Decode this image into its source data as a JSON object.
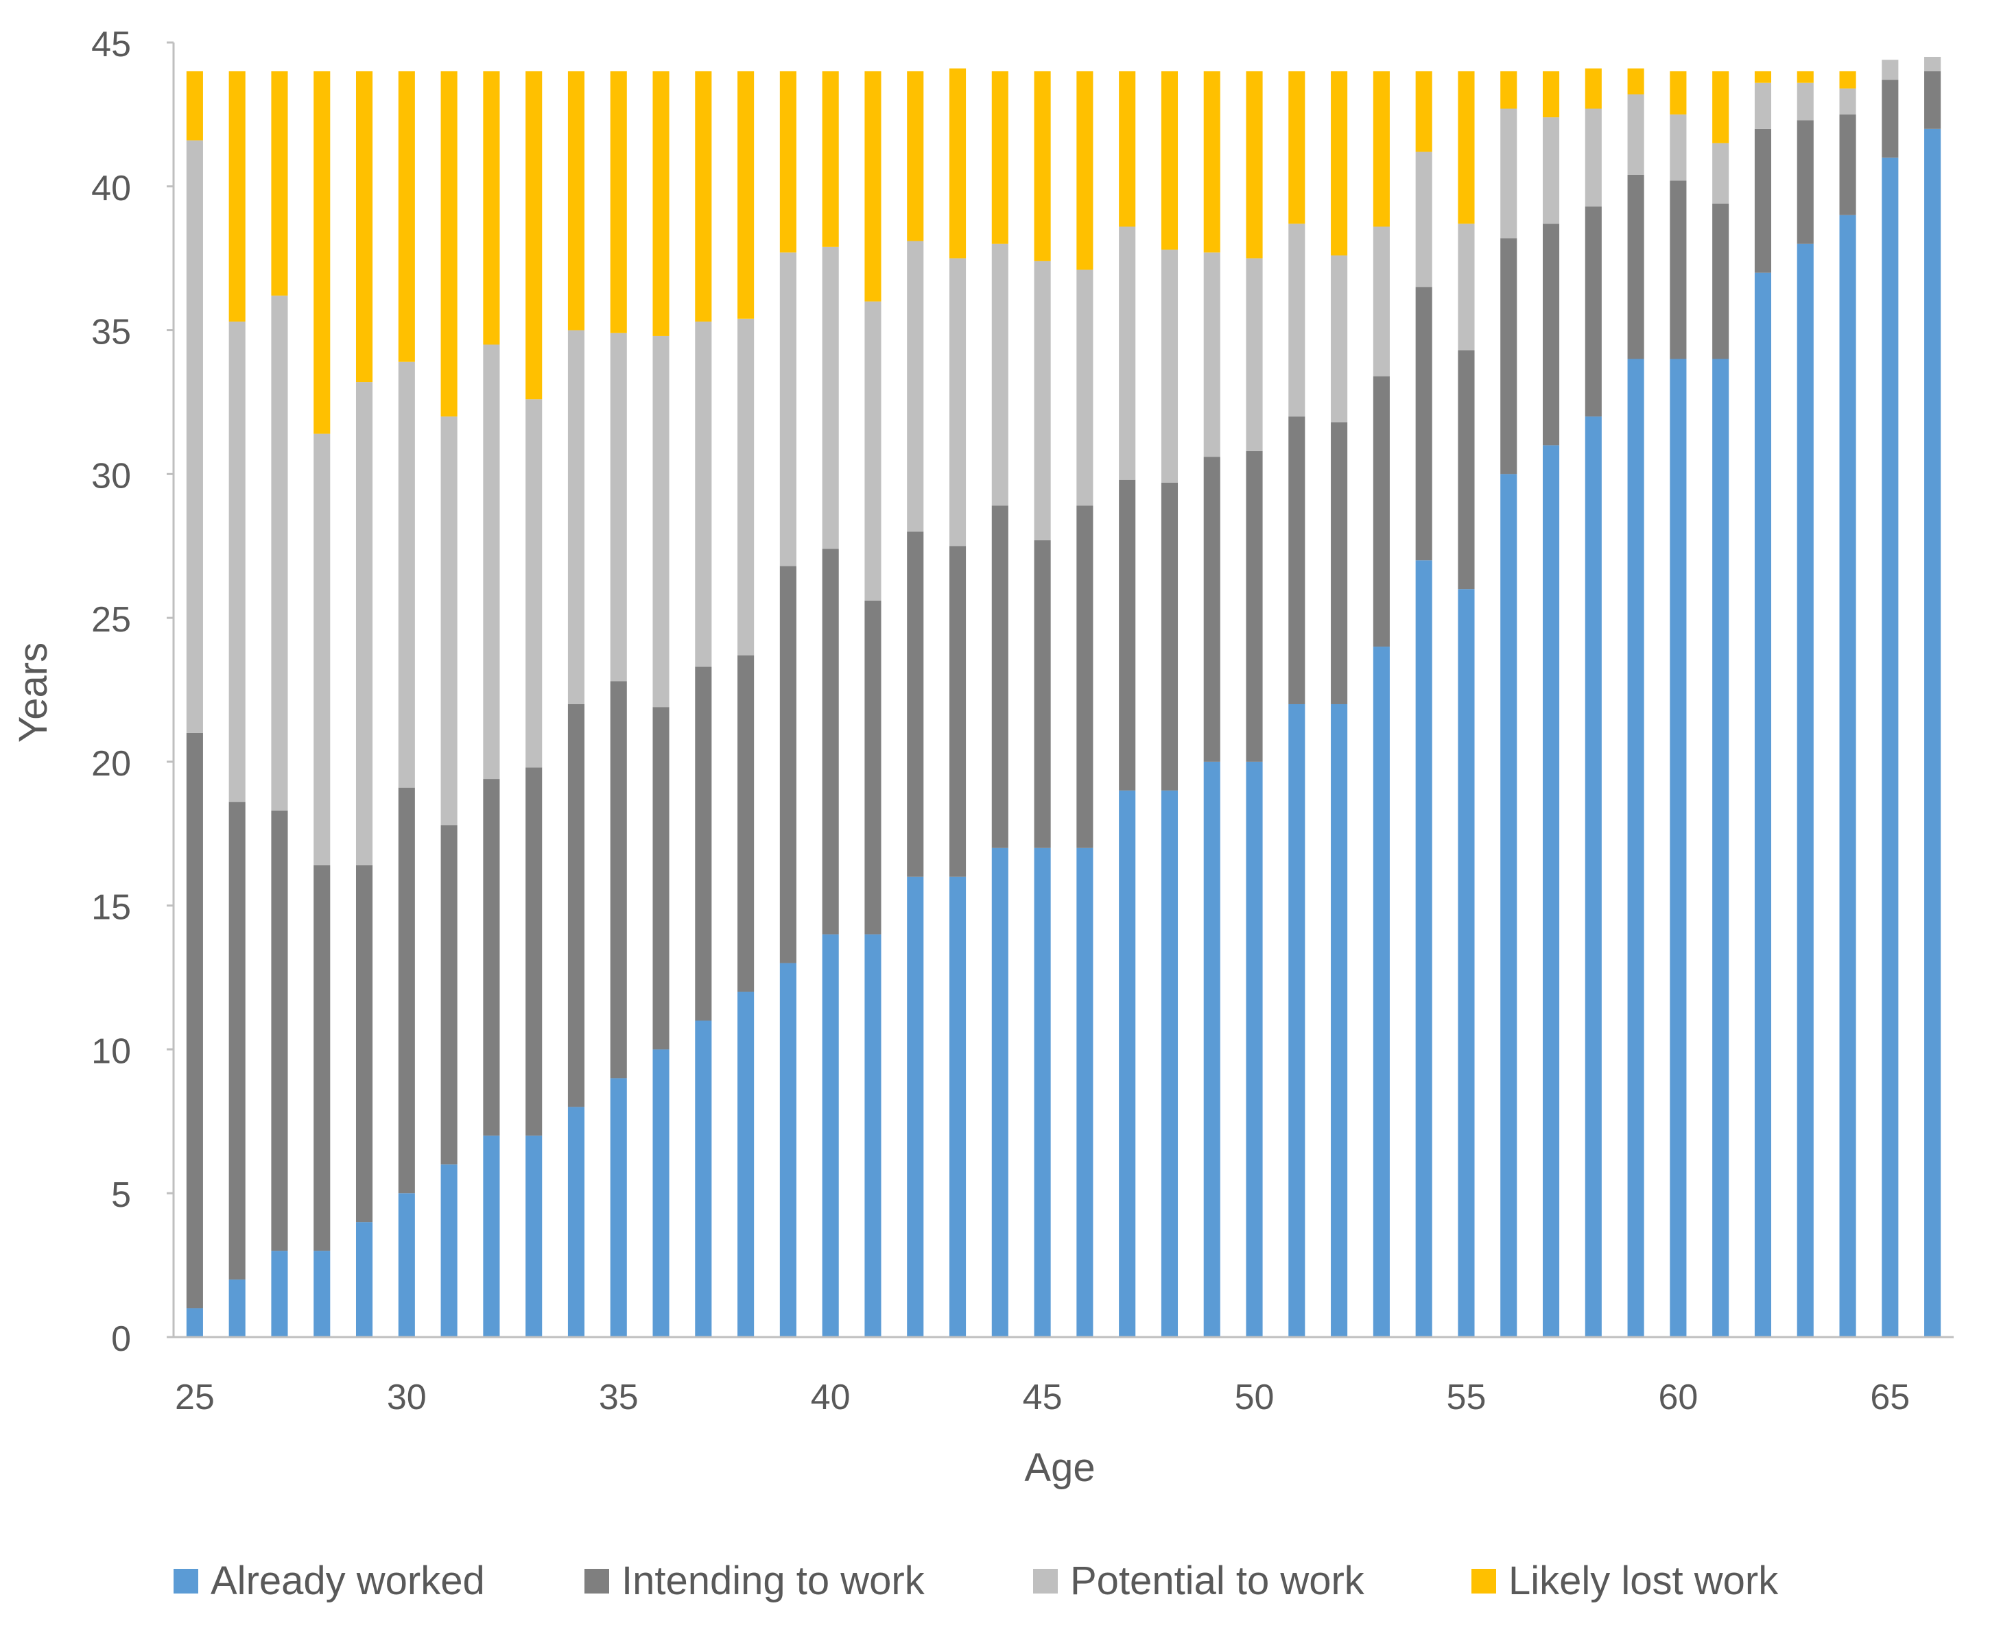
{
  "chart_data": {
    "type": "bar",
    "stacked": true,
    "title": "",
    "xlabel": "Age",
    "ylabel": "Years",
    "ylim": [
      0,
      45
    ],
    "yticks": [
      "0",
      "5",
      "10",
      "15",
      "20",
      "25",
      "30",
      "35",
      "40",
      "45"
    ],
    "xticks": [
      "25",
      "30",
      "35",
      "40",
      "45",
      "50",
      "55",
      "60",
      "65"
    ],
    "grid": false,
    "legend_position": "bottom",
    "categories": [
      "25",
      "26",
      "27",
      "28",
      "29",
      "30",
      "31",
      "32",
      "33",
      "34",
      "35",
      "36",
      "37",
      "38",
      "39",
      "40",
      "41",
      "42",
      "43",
      "44",
      "45",
      "46",
      "47",
      "48",
      "49",
      "50",
      "51",
      "52",
      "53",
      "54",
      "55",
      "56",
      "57",
      "58",
      "59",
      "60",
      "61",
      "62",
      "63",
      "64",
      "65",
      "66"
    ],
    "series": [
      {
        "name": "Already worked",
        "color": "#5B9BD5",
        "values": [
          1,
          2,
          3,
          3,
          4,
          5,
          6,
          7,
          7,
          8,
          9,
          10,
          11,
          12,
          13,
          14,
          14,
          16,
          16,
          17,
          17,
          17,
          19,
          19,
          20,
          20,
          22,
          22,
          24,
          27,
          26,
          30,
          31,
          32,
          34,
          34,
          34,
          37,
          38,
          39,
          41,
          42
        ]
      },
      {
        "name": "Intending to work",
        "color": "#7F7F7F",
        "values": [
          20,
          16.6,
          15.3,
          13.4,
          12.4,
          14.1,
          11.8,
          12.4,
          12.8,
          14,
          13.8,
          11.9,
          12.3,
          11.7,
          13.8,
          13.4,
          11.6,
          12,
          11.5,
          11.9,
          10.7,
          11.9,
          10.8,
          10.7,
          10.6,
          10.8,
          10,
          9.8,
          9.4,
          9.5,
          8.3,
          8.2,
          7.7,
          7.3,
          6.4,
          6.2,
          5.4,
          5,
          4.3,
          3.5,
          2.7,
          2
        ]
      },
      {
        "name": "Potential to work",
        "color": "#BFBFBF",
        "values": [
          20.6,
          16.7,
          17.9,
          15,
          16.8,
          14.8,
          14.2,
          15.1,
          12.8,
          13,
          12.1,
          12.9,
          12,
          11.7,
          10.9,
          10.5,
          10.4,
          10.1,
          10,
          9.1,
          9.7,
          8.2,
          8.8,
          8.1,
          7.1,
          6.7,
          6.7,
          5.8,
          5.2,
          4.7,
          4.4,
          4.5,
          3.7,
          3.4,
          2.8,
          2.3,
          2.1,
          1.6,
          1.3,
          0.9,
          0.7,
          0.5
        ]
      },
      {
        "name": "Likely lost work",
        "color": "#FFC000",
        "values": [
          2.4,
          8.7,
          7.8,
          12.6,
          10.8,
          10.1,
          12,
          9.5,
          11.4,
          9,
          9.1,
          9.2,
          8.7,
          8.6,
          6.3,
          6.1,
          8,
          5.9,
          6.6,
          6,
          6.6,
          6.9,
          5.4,
          6.2,
          6.3,
          6.5,
          5.3,
          6.4,
          5.4,
          2.8,
          5.3,
          1.3,
          1.6,
          1.4,
          0.9,
          1.5,
          2.5,
          0.4,
          0.4,
          0.6,
          0,
          0
        ]
      }
    ]
  }
}
